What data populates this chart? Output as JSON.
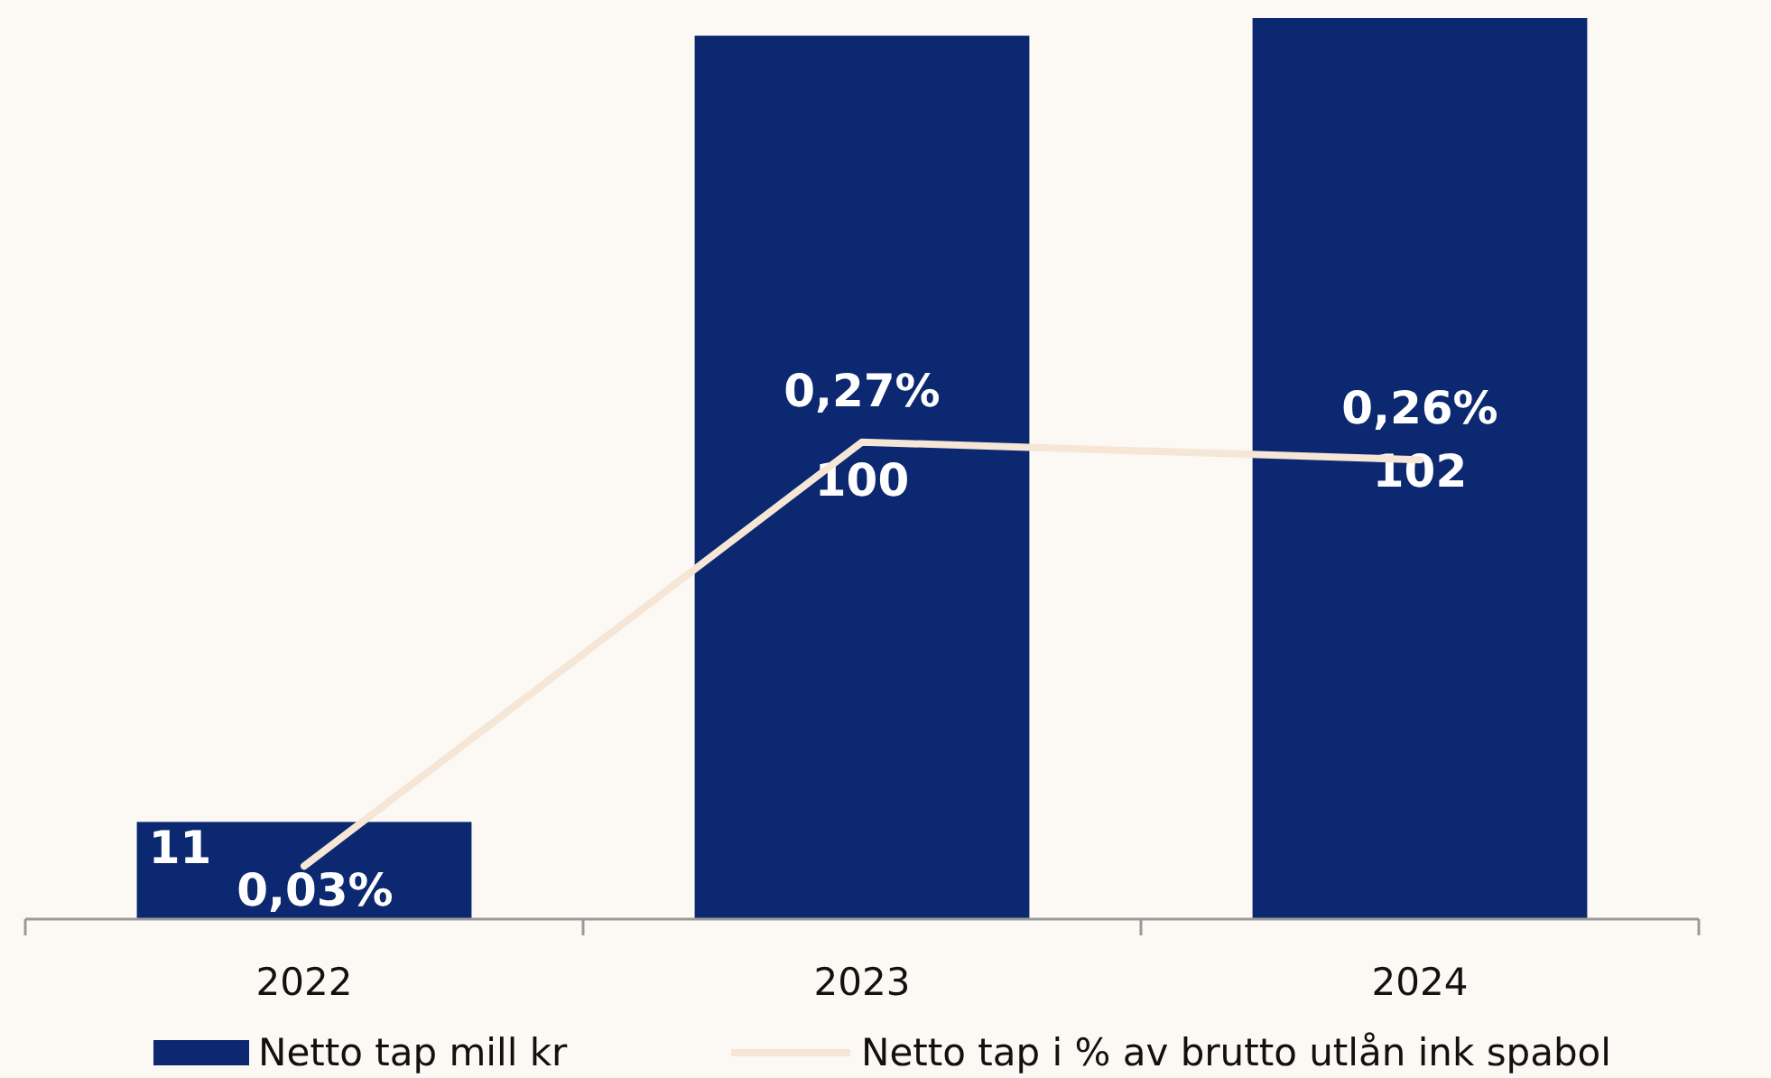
{
  "chart_data": {
    "type": "bar",
    "categories": [
      "2022",
      "2023",
      "2024"
    ],
    "series": [
      {
        "name": "Netto tap mill kr",
        "color": "#0b2870",
        "values": [
          11,
          100,
          102
        ],
        "value_labels": [
          "11",
          "100",
          "102"
        ]
      },
      {
        "name": "Netto tap i % av brutto utlån ink spabol",
        "type": "line",
        "axis": "y2",
        "color": "#f5e6d6",
        "values": [
          0.03,
          0.27,
          0.26
        ],
        "value_labels": [
          "0,03%",
          "0,27%",
          "0,26%"
        ]
      }
    ],
    "ylim": [
      0,
      102
    ],
    "y2lim": [
      0,
      0.51
    ],
    "tick_labels": "x",
    "legend": "bottom",
    "marker": "none"
  }
}
